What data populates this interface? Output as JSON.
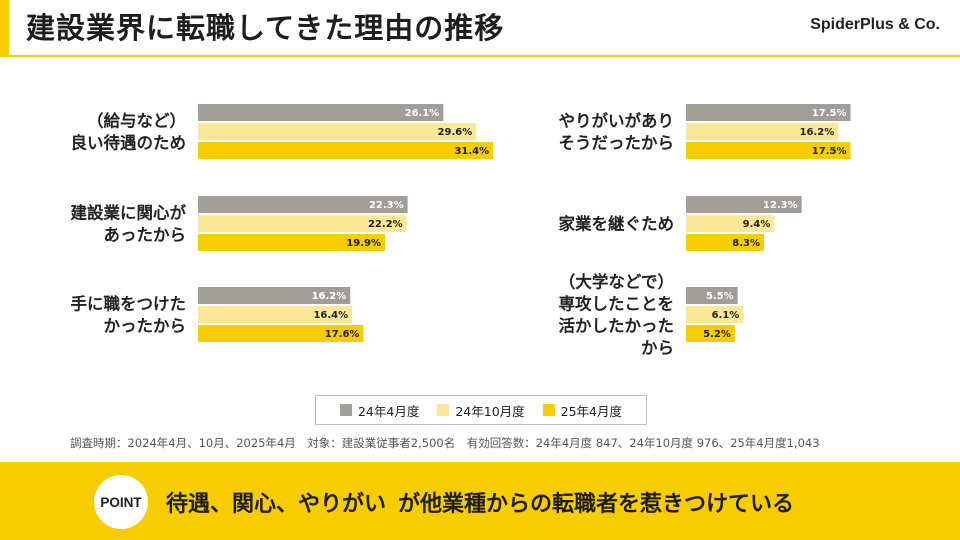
{
  "header": {
    "title": "建設業界に転職してきた理由の推移",
    "brand": "SpiderPlus & Co."
  },
  "chart_data": {
    "type": "bar",
    "orientation": "horizontal",
    "value_unit": "%",
    "series": [
      {
        "name": "24年4月度",
        "color": "#a19e99"
      },
      {
        "name": "24年10月度",
        "color": "#fbe897"
      },
      {
        "name": "25年4月度",
        "color": "#f7cc00"
      }
    ],
    "categories": [
      {
        "label_lines": [
          "（給与など）",
          "良い待遇のため"
        ],
        "values": [
          26.1,
          29.6,
          31.4
        ],
        "labels": [
          "26.1%",
          "29.6%",
          "31.4%"
        ]
      },
      {
        "label_lines": [
          "建設業に関心が",
          "あったから"
        ],
        "values": [
          22.3,
          22.2,
          19.9
        ],
        "labels": [
          "22.3%",
          "22.2%",
          "19.9%"
        ]
      },
      {
        "label_lines": [
          "手に職をつけた",
          "かったから"
        ],
        "values": [
          16.2,
          16.4,
          17.6
        ],
        "labels": [
          "16.2%",
          "16.4%",
          "17.6%"
        ]
      },
      {
        "label_lines": [
          "やりがいがあり",
          "そうだったから"
        ],
        "values": [
          17.5,
          16.2,
          17.5
        ],
        "labels": [
          "17.5%",
          "16.2%",
          "17.5%"
        ]
      },
      {
        "label_lines": [
          "家業を継ぐため"
        ],
        "values": [
          12.3,
          9.4,
          8.3
        ],
        "labels": [
          "12.3%",
          "9.4%",
          "8.3%"
        ]
      },
      {
        "label_lines": [
          "（大学などで）",
          "専攻したことを",
          "活かしたかった",
          "から"
        ],
        "values": [
          5.5,
          6.1,
          5.2
        ],
        "labels": [
          "5.5%",
          "6.1%",
          "5.2%"
        ]
      }
    ],
    "legend_position": "bottom-center",
    "grid": false
  },
  "legend": {
    "items": [
      "24年4月度",
      "24年10月度",
      "25年4月度"
    ]
  },
  "footnote": "調査時期：2024年4月、10月、2025年4月　対象：建設業従事者2,500名　有効回答数：24年4月度 847、24年10月度 976、25年4月度1,043",
  "banner": {
    "badge": "POINT",
    "highlight": "待遇、関心、やりがい",
    "rest": "が他業種からの転職者を惹きつけている"
  }
}
